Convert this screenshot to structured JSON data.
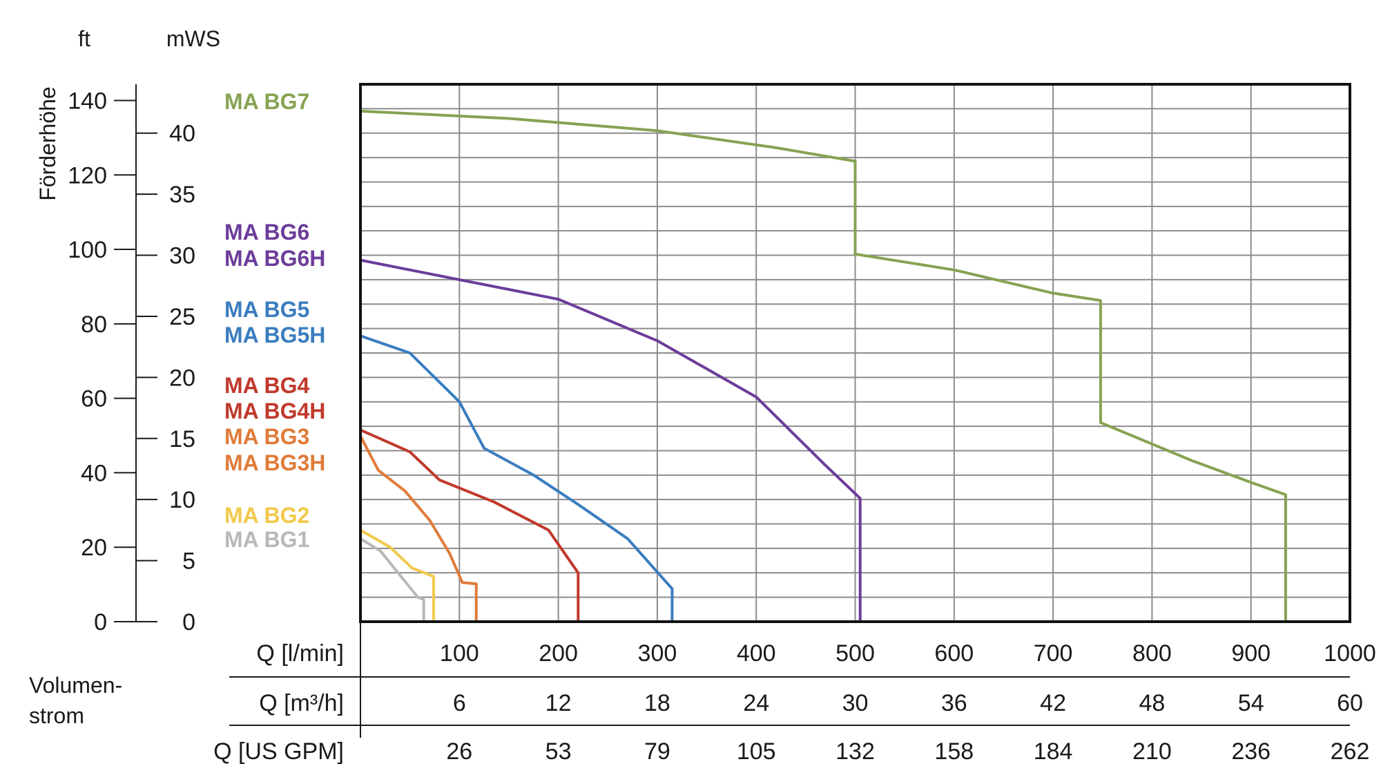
{
  "chart_data": {
    "type": "line",
    "y_label": "Förderhöhe",
    "y_units": {
      "ft": "ft",
      "mws": "mWS"
    },
    "y_ticks_ft": [
      "0",
      "20",
      "40",
      "60",
      "80",
      "100",
      "120",
      "140"
    ],
    "y_ticks_mws": [
      "0",
      "5",
      "10",
      "15",
      "20",
      "25",
      "30",
      "35",
      "40"
    ],
    "ylim_mws": [
      0,
      44
    ],
    "xlim_lmin": [
      0,
      1000
    ],
    "x_label_line1": "Volumen-",
    "x_label_line2": "strom",
    "x_axes": [
      {
        "label": "Q [l/min]",
        "ticks": [
          "100",
          "200",
          "300",
          "400",
          "500",
          "600",
          "700",
          "800",
          "900",
          "1000"
        ]
      },
      {
        "label": "Q [m³/h]",
        "ticks": [
          "6",
          "12",
          "18",
          "24",
          "30",
          "36",
          "42",
          "48",
          "54",
          "60"
        ]
      },
      {
        "label": "Q [US GPM]",
        "ticks": [
          "26",
          "53",
          "79",
          "105",
          "132",
          "158",
          "184",
          "210",
          "236",
          "262"
        ]
      }
    ],
    "grid": true,
    "legend_position": "left",
    "series": [
      {
        "name": "MA BG1",
        "color": "#b8b8b8",
        "points": [
          [
            0,
            6.8
          ],
          [
            20,
            5.8
          ],
          [
            40,
            3.8
          ],
          [
            58,
            2.0
          ],
          [
            64,
            1.8
          ],
          [
            64,
            0
          ]
        ]
      },
      {
        "name": "MA BG2",
        "color": "#f2c94c",
        "points": [
          [
            0,
            7.5
          ],
          [
            30,
            6.1
          ],
          [
            52,
            4.4
          ],
          [
            74,
            3.7
          ],
          [
            74,
            0
          ]
        ]
      },
      {
        "name": "MA BG3H",
        "color": "#e07b39",
        "points": [
          [
            0,
            15.2
          ],
          [
            18,
            12.4
          ],
          [
            45,
            10.7
          ],
          [
            70,
            8.3
          ],
          [
            90,
            5.6
          ],
          [
            103,
            3.2
          ],
          [
            117,
            3.1
          ],
          [
            117,
            0
          ]
        ]
      },
      {
        "name": "MA BG4H",
        "color": "#c0392b",
        "points": [
          [
            0,
            15.7
          ],
          [
            50,
            13.9
          ],
          [
            80,
            11.6
          ],
          [
            135,
            9.8
          ],
          [
            190,
            7.5
          ],
          [
            220,
            4.0
          ],
          [
            220,
            0
          ]
        ]
      },
      {
        "name": "MA BG5H",
        "color": "#3a7dbf",
        "points": [
          [
            0,
            23.4
          ],
          [
            50,
            22.0
          ],
          [
            100,
            18.0
          ],
          [
            125,
            14.2
          ],
          [
            175,
            12.0
          ],
          [
            220,
            9.6
          ],
          [
            270,
            6.8
          ],
          [
            315,
            2.7
          ],
          [
            315,
            0
          ]
        ]
      },
      {
        "name": "MA BG6H",
        "color": "#6c3c9a",
        "points": [
          [
            0,
            29.6
          ],
          [
            100,
            28.0
          ],
          [
            200,
            26.4
          ],
          [
            300,
            23.0
          ],
          [
            400,
            18.4
          ],
          [
            470,
            12.8
          ],
          [
            505,
            10.1
          ],
          [
            505,
            0
          ]
        ]
      },
      {
        "name": "MA BG7",
        "color": "#86a352",
        "points": [
          [
            0,
            41.8
          ],
          [
            150,
            41.2
          ],
          [
            300,
            40.2
          ],
          [
            420,
            38.8
          ],
          [
            500,
            37.7
          ],
          [
            500,
            30.1
          ],
          [
            600,
            28.8
          ],
          [
            700,
            26.9
          ],
          [
            748,
            26.3
          ],
          [
            748,
            16.3
          ],
          [
            840,
            13.2
          ],
          [
            900,
            11.4
          ],
          [
            935,
            10.4
          ],
          [
            935,
            0
          ]
        ]
      }
    ]
  },
  "legend_labels": [
    {
      "text": "MA BG7",
      "color": "#86a352"
    },
    {
      "text": "MA BG6",
      "color": "#6c3c9a"
    },
    {
      "text": "MA BG6H",
      "color": "#6c3c9a"
    },
    {
      "text": "MA BG5",
      "color": "#3a7dbf"
    },
    {
      "text": "MA BG5H",
      "color": "#3a7dbf"
    },
    {
      "text": "MA BG4",
      "color": "#c0392b"
    },
    {
      "text": "MA BG4H",
      "color": "#c0392b"
    },
    {
      "text": "MA BG3",
      "color": "#e07b39"
    },
    {
      "text": "MA BG3H",
      "color": "#e07b39"
    },
    {
      "text": "MA BG2",
      "color": "#f2c94c"
    },
    {
      "text": "MA BG1",
      "color": "#b8b8b8"
    }
  ]
}
